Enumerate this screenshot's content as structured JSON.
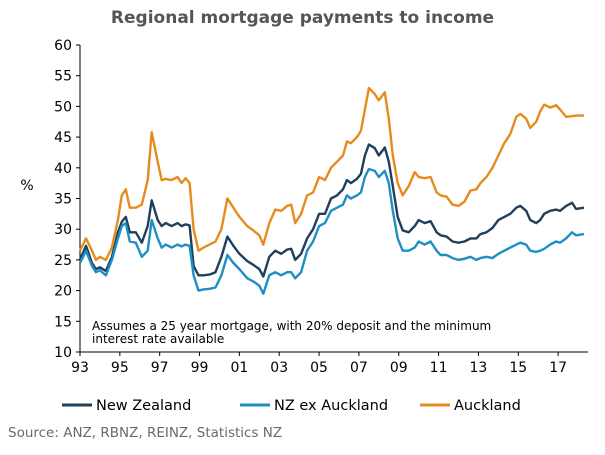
{
  "chart_data": {
    "type": "line",
    "title": "Regional mortgage payments to income",
    "ylabel": "%",
    "xlabel": "",
    "ylim": [
      10,
      60
    ],
    "xlim": [
      1993,
      2018.5
    ],
    "yticks": [
      10,
      15,
      20,
      25,
      30,
      35,
      40,
      45,
      50,
      55,
      60
    ],
    "xticks": [
      {
        "x": 1993,
        "label": "93"
      },
      {
        "x": 1995,
        "label": "95"
      },
      {
        "x": 1997,
        "label": "97"
      },
      {
        "x": 1999,
        "label": "99"
      },
      {
        "x": 2001,
        "label": "01"
      },
      {
        "x": 2003,
        "label": "03"
      },
      {
        "x": 2005,
        "label": "05"
      },
      {
        "x": 2007,
        "label": "07"
      },
      {
        "x": 2009,
        "label": "09"
      },
      {
        "x": 2011,
        "label": "11"
      },
      {
        "x": 2013,
        "label": "13"
      },
      {
        "x": 2015,
        "label": "15"
      },
      {
        "x": 2017,
        "label": "17"
      }
    ],
    "grid": false,
    "legend_position": "bottom",
    "annotation": [
      "Assumes a 25 year mortgage, with 20% deposit and the minimum",
      "interest rate available"
    ],
    "series": [
      {
        "name": "New Zealand",
        "color": "#1f3f5b",
        "points": [
          [
            1993,
            25
          ],
          [
            1993.3,
            27.3
          ],
          [
            1993.6,
            24.5
          ],
          [
            1993.8,
            23.5
          ],
          [
            1994.0,
            23.8
          ],
          [
            1994.3,
            23.2
          ],
          [
            1994.6,
            25.5
          ],
          [
            1994.9,
            29.5
          ],
          [
            1995.1,
            31.2
          ],
          [
            1995.3,
            32
          ],
          [
            1995.5,
            29.5
          ],
          [
            1995.8,
            29.5
          ],
          [
            1996.1,
            27.8
          ],
          [
            1996.4,
            30.5
          ],
          [
            1996.6,
            34.7
          ],
          [
            1996.9,
            31.5
          ],
          [
            1997.1,
            30.5
          ],
          [
            1997.3,
            31
          ],
          [
            1997.6,
            30.5
          ],
          [
            1997.9,
            31
          ],
          [
            1998.1,
            30.5
          ],
          [
            1998.3,
            30.8
          ],
          [
            1998.5,
            30.6
          ],
          [
            1998.7,
            24
          ],
          [
            1998.95,
            22.5
          ],
          [
            1999.2,
            22.5
          ],
          [
            1999.5,
            22.6
          ],
          [
            1999.8,
            23
          ],
          [
            2000.1,
            25.5
          ],
          [
            2000.4,
            28.8
          ],
          [
            2000.7,
            27.3
          ],
          [
            2001.0,
            26
          ],
          [
            2001.4,
            24.8
          ],
          [
            2001.7,
            24.2
          ],
          [
            2002.0,
            23.5
          ],
          [
            2002.2,
            22.3
          ],
          [
            2002.5,
            25.5
          ],
          [
            2002.8,
            26.5
          ],
          [
            2003.1,
            26
          ],
          [
            2003.4,
            26.7
          ],
          [
            2003.6,
            26.8
          ],
          [
            2003.8,
            25
          ],
          [
            2004.1,
            26
          ],
          [
            2004.4,
            28.5
          ],
          [
            2004.7,
            30
          ],
          [
            2005.0,
            32.5
          ],
          [
            2005.3,
            32.5
          ],
          [
            2005.6,
            35
          ],
          [
            2005.9,
            35.5
          ],
          [
            2006.2,
            36.5
          ],
          [
            2006.4,
            38
          ],
          [
            2006.6,
            37.5
          ],
          [
            2006.9,
            38.2
          ],
          [
            2007.1,
            39
          ],
          [
            2007.3,
            42
          ],
          [
            2007.5,
            43.8
          ],
          [
            2007.8,
            43.2
          ],
          [
            2008.0,
            42
          ],
          [
            2008.3,
            43.3
          ],
          [
            2008.5,
            41
          ],
          [
            2008.7,
            37
          ],
          [
            2008.95,
            32
          ],
          [
            2009.2,
            29.8
          ],
          [
            2009.5,
            29.5
          ],
          [
            2009.8,
            30.5
          ],
          [
            2010.0,
            31.5
          ],
          [
            2010.3,
            31
          ],
          [
            2010.6,
            31.3
          ],
          [
            2010.9,
            29.5
          ],
          [
            2011.1,
            29
          ],
          [
            2011.4,
            28.8
          ],
          [
            2011.7,
            28
          ],
          [
            2012.0,
            27.8
          ],
          [
            2012.3,
            28
          ],
          [
            2012.6,
            28.5
          ],
          [
            2012.9,
            28.5
          ],
          [
            2013.1,
            29.2
          ],
          [
            2013.4,
            29.5
          ],
          [
            2013.7,
            30.2
          ],
          [
            2014.0,
            31.5
          ],
          [
            2014.3,
            32
          ],
          [
            2014.6,
            32.5
          ],
          [
            2014.9,
            33.5
          ],
          [
            2015.1,
            33.8
          ],
          [
            2015.4,
            33
          ],
          [
            2015.6,
            31.5
          ],
          [
            2015.9,
            31
          ],
          [
            2016.1,
            31.5
          ],
          [
            2016.3,
            32.5
          ],
          [
            2016.6,
            33
          ],
          [
            2016.9,
            33.2
          ],
          [
            2017.1,
            33
          ],
          [
            2017.4,
            33.8
          ],
          [
            2017.7,
            34.3
          ],
          [
            2017.9,
            33.3
          ],
          [
            2018.3,
            33.5
          ]
        ]
      },
      {
        "name": "NZ ex Auckland",
        "color": "#1e8fc4",
        "points": [
          [
            1993,
            24.5
          ],
          [
            1993.3,
            26.5
          ],
          [
            1993.6,
            24
          ],
          [
            1993.8,
            23
          ],
          [
            1994.0,
            23.3
          ],
          [
            1994.3,
            22.5
          ],
          [
            1994.6,
            25
          ],
          [
            1994.9,
            28.5
          ],
          [
            1995.1,
            30.5
          ],
          [
            1995.3,
            31
          ],
          [
            1995.5,
            28
          ],
          [
            1995.8,
            27.8
          ],
          [
            1996.1,
            25.5
          ],
          [
            1996.4,
            26.5
          ],
          [
            1996.6,
            31.5
          ],
          [
            1996.9,
            28.5
          ],
          [
            1997.1,
            27
          ],
          [
            1997.3,
            27.5
          ],
          [
            1997.6,
            27
          ],
          [
            1997.9,
            27.5
          ],
          [
            1998.1,
            27.2
          ],
          [
            1998.3,
            27.5
          ],
          [
            1998.5,
            27.3
          ],
          [
            1998.7,
            22.5
          ],
          [
            1998.95,
            20
          ],
          [
            1999.2,
            20.2
          ],
          [
            1999.5,
            20.3
          ],
          [
            1999.8,
            20.5
          ],
          [
            2000.1,
            22.5
          ],
          [
            2000.4,
            25.8
          ],
          [
            2000.7,
            24.5
          ],
          [
            2001.0,
            23.5
          ],
          [
            2001.4,
            22
          ],
          [
            2001.7,
            21.5
          ],
          [
            2002.0,
            20.8
          ],
          [
            2002.2,
            19.5
          ],
          [
            2002.5,
            22.5
          ],
          [
            2002.8,
            23
          ],
          [
            2003.1,
            22.5
          ],
          [
            2003.4,
            23
          ],
          [
            2003.6,
            23
          ],
          [
            2003.8,
            22
          ],
          [
            2004.1,
            23
          ],
          [
            2004.4,
            26.5
          ],
          [
            2004.7,
            28
          ],
          [
            2005.0,
            30.5
          ],
          [
            2005.3,
            31
          ],
          [
            2005.6,
            33
          ],
          [
            2005.9,
            33.5
          ],
          [
            2006.2,
            34
          ],
          [
            2006.4,
            35.5
          ],
          [
            2006.6,
            35
          ],
          [
            2006.9,
            35.5
          ],
          [
            2007.1,
            36
          ],
          [
            2007.3,
            38.5
          ],
          [
            2007.5,
            39.8
          ],
          [
            2007.8,
            39.5
          ],
          [
            2008.0,
            38.5
          ],
          [
            2008.3,
            39.5
          ],
          [
            2008.5,
            37.5
          ],
          [
            2008.7,
            33
          ],
          [
            2008.95,
            28.5
          ],
          [
            2009.2,
            26.5
          ],
          [
            2009.5,
            26.5
          ],
          [
            2009.8,
            27
          ],
          [
            2010.0,
            28
          ],
          [
            2010.3,
            27.5
          ],
          [
            2010.6,
            28
          ],
          [
            2010.9,
            26.5
          ],
          [
            2011.1,
            25.8
          ],
          [
            2011.4,
            25.8
          ],
          [
            2011.7,
            25.3
          ],
          [
            2012.0,
            25
          ],
          [
            2012.3,
            25.2
          ],
          [
            2012.6,
            25.5
          ],
          [
            2012.9,
            25
          ],
          [
            2013.1,
            25.3
          ],
          [
            2013.4,
            25.5
          ],
          [
            2013.7,
            25.3
          ],
          [
            2014.0,
            26
          ],
          [
            2014.3,
            26.5
          ],
          [
            2014.6,
            27
          ],
          [
            2014.9,
            27.5
          ],
          [
            2015.1,
            27.8
          ],
          [
            2015.4,
            27.5
          ],
          [
            2015.6,
            26.5
          ],
          [
            2015.9,
            26.3
          ],
          [
            2016.1,
            26.5
          ],
          [
            2016.3,
            26.8
          ],
          [
            2016.6,
            27.5
          ],
          [
            2016.9,
            28
          ],
          [
            2017.1,
            27.8
          ],
          [
            2017.4,
            28.5
          ],
          [
            2017.7,
            29.5
          ],
          [
            2017.9,
            29
          ],
          [
            2018.3,
            29.2
          ]
        ]
      },
      {
        "name": "Auckland",
        "color": "#e68c1e",
        "points": [
          [
            1993,
            26.5
          ],
          [
            1993.3,
            28.5
          ],
          [
            1993.6,
            26.5
          ],
          [
            1993.8,
            25
          ],
          [
            1994.0,
            25.5
          ],
          [
            1994.3,
            25
          ],
          [
            1994.6,
            27
          ],
          [
            1994.9,
            31.5
          ],
          [
            1995.1,
            35.5
          ],
          [
            1995.3,
            36.5
          ],
          [
            1995.5,
            33.5
          ],
          [
            1995.8,
            33.5
          ],
          [
            1996.1,
            34
          ],
          [
            1996.4,
            38
          ],
          [
            1996.6,
            45.8
          ],
          [
            1996.9,
            41
          ],
          [
            1997.1,
            38
          ],
          [
            1997.3,
            38.2
          ],
          [
            1997.6,
            38
          ],
          [
            1997.9,
            38.5
          ],
          [
            1998.1,
            37.5
          ],
          [
            1998.3,
            38.3
          ],
          [
            1998.5,
            37.5
          ],
          [
            1998.7,
            30
          ],
          [
            1998.95,
            26.5
          ],
          [
            1999.2,
            27
          ],
          [
            1999.5,
            27.5
          ],
          [
            1999.8,
            28
          ],
          [
            2000.1,
            30
          ],
          [
            2000.4,
            35
          ],
          [
            2000.7,
            33.5
          ],
          [
            2001.0,
            32
          ],
          [
            2001.4,
            30.5
          ],
          [
            2001.7,
            29.8
          ],
          [
            2002.0,
            29
          ],
          [
            2002.2,
            27.5
          ],
          [
            2002.5,
            31
          ],
          [
            2002.8,
            33.2
          ],
          [
            2003.1,
            33
          ],
          [
            2003.4,
            33.8
          ],
          [
            2003.6,
            34
          ],
          [
            2003.8,
            31
          ],
          [
            2004.1,
            32.5
          ],
          [
            2004.4,
            35.5
          ],
          [
            2004.7,
            36
          ],
          [
            2005.0,
            38.5
          ],
          [
            2005.3,
            38
          ],
          [
            2005.6,
            40
          ],
          [
            2005.9,
            41
          ],
          [
            2006.2,
            42
          ],
          [
            2006.4,
            44.3
          ],
          [
            2006.6,
            44
          ],
          [
            2006.9,
            45
          ],
          [
            2007.1,
            46
          ],
          [
            2007.3,
            49.5
          ],
          [
            2007.5,
            53
          ],
          [
            2007.8,
            52
          ],
          [
            2008.0,
            51
          ],
          [
            2008.3,
            52.3
          ],
          [
            2008.5,
            48
          ],
          [
            2008.7,
            42
          ],
          [
            2008.95,
            37.5
          ],
          [
            2009.2,
            35.5
          ],
          [
            2009.5,
            37
          ],
          [
            2009.8,
            39.3
          ],
          [
            2010.0,
            38.5
          ],
          [
            2010.3,
            38.3
          ],
          [
            2010.6,
            38.5
          ],
          [
            2010.9,
            36
          ],
          [
            2011.1,
            35.5
          ],
          [
            2011.4,
            35.3
          ],
          [
            2011.7,
            34
          ],
          [
            2012.0,
            33.8
          ],
          [
            2012.3,
            34.5
          ],
          [
            2012.6,
            36.3
          ],
          [
            2012.9,
            36.5
          ],
          [
            2013.1,
            37.5
          ],
          [
            2013.4,
            38.5
          ],
          [
            2013.7,
            40
          ],
          [
            2014.0,
            42
          ],
          [
            2014.3,
            44
          ],
          [
            2014.6,
            45.5
          ],
          [
            2014.9,
            48.3
          ],
          [
            2015.1,
            48.8
          ],
          [
            2015.4,
            48
          ],
          [
            2015.6,
            46.5
          ],
          [
            2015.9,
            47.5
          ],
          [
            2016.1,
            49.2
          ],
          [
            2016.3,
            50.3
          ],
          [
            2016.6,
            49.8
          ],
          [
            2016.9,
            50.2
          ],
          [
            2017.1,
            49.5
          ],
          [
            2017.4,
            48.3
          ],
          [
            2017.7,
            48.4
          ],
          [
            2017.9,
            48.5
          ],
          [
            2018.3,
            48.5
          ]
        ]
      }
    ]
  },
  "source": "Source: ANZ, RBNZ, REINZ, Statistics NZ"
}
